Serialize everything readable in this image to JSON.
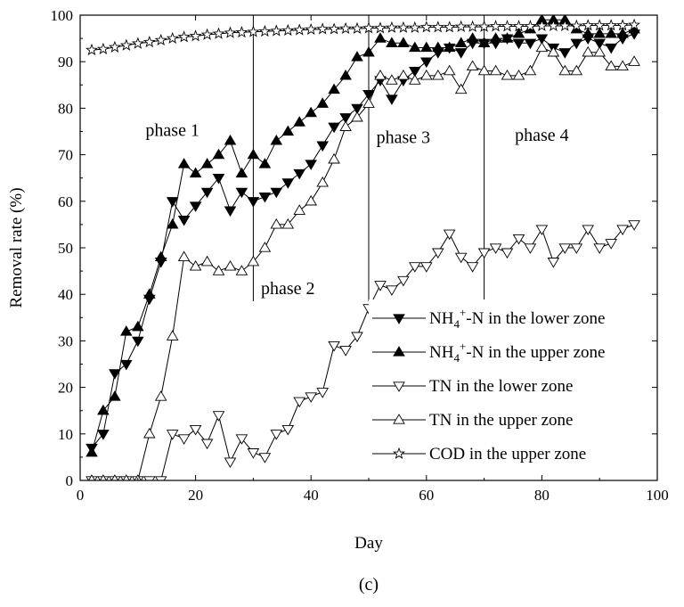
{
  "chart_data": {
    "type": "line",
    "caption": "(c)",
    "xlabel": "Day",
    "ylabel": "Removal rate (%)",
    "xlim": [
      0,
      100
    ],
    "ylim": [
      0,
      100
    ],
    "xticks": [
      0,
      20,
      40,
      60,
      80,
      100
    ],
    "yticks": [
      0,
      10,
      20,
      30,
      40,
      50,
      60,
      70,
      80,
      90,
      100
    ],
    "grid": false,
    "legend_position": "bottom-right",
    "phase_dividers": [
      30,
      50,
      70
    ],
    "phase_labels": [
      {
        "text": "phase 1",
        "x": 16,
        "y": 74
      },
      {
        "text": "phase 2",
        "x": 36,
        "y": 40
      },
      {
        "text": "phase 3",
        "x": 56,
        "y": 72.5
      },
      {
        "text": "phase 4",
        "x": 80,
        "y": 73
      }
    ],
    "series": [
      {
        "name": "NH4+-N in the lower zone",
        "legend_main": "NH",
        "legend_sub": "4",
        "legend_sup": "+",
        "legend_rest": "-N in the lower zone",
        "marker": "triangle-down-filled",
        "x": [
          2,
          4,
          6,
          8,
          10,
          12,
          14,
          16,
          18,
          20,
          22,
          24,
          26,
          28,
          30,
          32,
          34,
          36,
          38,
          40,
          42,
          44,
          46,
          48,
          50,
          52,
          54,
          56,
          58,
          60,
          62,
          64,
          66,
          68,
          70,
          72,
          74,
          76,
          78,
          80,
          82,
          84,
          86,
          88,
          90,
          92,
          94,
          96
        ],
        "y": [
          7,
          10,
          23,
          25,
          30,
          39,
          47,
          60,
          56,
          59,
          62,
          65,
          58,
          62,
          60,
          61,
          62,
          64,
          66,
          68,
          72,
          76,
          78,
          80,
          83,
          86,
          82,
          86,
          88,
          90,
          92,
          93,
          92,
          94,
          94,
          94,
          95,
          94,
          94,
          95,
          93,
          92,
          94,
          95,
          94,
          93,
          95,
          96
        ]
      },
      {
        "name": "NH4+-N in the upper zone",
        "legend_main": "NH",
        "legend_sub": "4",
        "legend_sup": "+",
        "legend_rest": "-N in the upper zone",
        "marker": "triangle-up-filled",
        "x": [
          2,
          4,
          6,
          8,
          10,
          12,
          14,
          16,
          18,
          20,
          22,
          24,
          26,
          28,
          30,
          32,
          34,
          36,
          38,
          40,
          42,
          44,
          46,
          48,
          50,
          52,
          54,
          56,
          58,
          60,
          62,
          64,
          66,
          68,
          70,
          72,
          74,
          76,
          78,
          80,
          82,
          84,
          86,
          88,
          90,
          92,
          94,
          96
        ],
        "y": [
          6,
          15,
          18,
          32,
          33,
          40,
          48,
          55,
          68,
          66,
          68,
          70,
          73,
          66,
          70,
          68,
          73,
          75,
          77,
          79,
          81,
          84,
          87,
          91,
          92,
          95,
          94,
          94,
          93,
          93,
          93,
          93,
          94,
          95,
          94,
          95,
          95,
          96,
          97,
          99,
          99,
          99,
          97,
          96,
          96,
          96,
          96,
          97
        ]
      },
      {
        "name": "TN in the lower zone",
        "legend_main": "TN in the lower zone",
        "marker": "triangle-down-open",
        "x": [
          2,
          4,
          6,
          8,
          10,
          12,
          14,
          16,
          18,
          20,
          22,
          24,
          26,
          28,
          30,
          32,
          34,
          36,
          38,
          40,
          42,
          44,
          46,
          48,
          50,
          52,
          54,
          56,
          58,
          60,
          62,
          64,
          66,
          68,
          70,
          72,
          74,
          76,
          78,
          80,
          82,
          84,
          86,
          88,
          90,
          92,
          94,
          96
        ],
        "y": [
          0,
          0,
          0,
          0,
          0,
          0,
          0,
          10,
          9,
          11,
          8,
          14,
          4,
          9,
          6,
          5,
          10,
          11,
          17,
          18,
          19,
          29,
          28,
          31,
          37,
          42,
          41,
          43,
          46,
          46,
          49,
          53,
          48,
          46,
          49,
          50,
          49,
          52,
          50,
          54,
          47,
          50,
          50,
          54,
          50,
          51,
          54,
          55
        ]
      },
      {
        "name": "TN in the upper zone",
        "legend_main": "TN in the upper zone",
        "marker": "triangle-up-open",
        "x": [
          2,
          4,
          6,
          8,
          10,
          12,
          14,
          16,
          18,
          20,
          22,
          24,
          26,
          28,
          30,
          32,
          34,
          36,
          38,
          40,
          42,
          44,
          46,
          48,
          50,
          52,
          54,
          56,
          58,
          60,
          62,
          64,
          66,
          68,
          70,
          72,
          74,
          76,
          78,
          80,
          82,
          84,
          86,
          88,
          90,
          92,
          94,
          96
        ],
        "y": [
          0,
          0,
          0,
          0,
          0,
          10,
          18,
          31,
          48,
          46,
          47,
          45,
          46,
          45,
          47,
          50,
          55,
          55,
          58,
          60,
          64,
          69,
          76,
          78,
          81,
          87,
          86,
          87,
          86,
          87,
          87,
          88,
          84,
          89,
          88,
          88,
          87,
          87,
          88,
          93,
          92,
          88,
          88,
          92,
          92,
          89,
          89,
          90
        ]
      },
      {
        "name": "COD in the upper zone",
        "legend_main": "COD in the upper zone",
        "marker": "star-open",
        "x": [
          2,
          4,
          6,
          8,
          10,
          12,
          14,
          16,
          18,
          20,
          22,
          24,
          26,
          28,
          30,
          32,
          34,
          36,
          38,
          40,
          42,
          44,
          46,
          48,
          50,
          52,
          54,
          56,
          58,
          60,
          62,
          64,
          66,
          68,
          70,
          72,
          74,
          76,
          78,
          80,
          82,
          84,
          86,
          88,
          90,
          92,
          94,
          96
        ],
        "y": [
          92.5,
          92.7,
          93.1,
          93.5,
          93.9,
          94.2,
          94.6,
          95.0,
          95.3,
          95.5,
          95.8,
          96.0,
          96.2,
          96.3,
          96.4,
          96.5,
          96.6,
          96.7,
          96.8,
          96.9,
          97.0,
          97.0,
          97.1,
          97.1,
          97.2,
          97.2,
          97.3,
          97.3,
          97.3,
          97.4,
          97.4,
          97.4,
          97.5,
          97.5,
          97.5,
          97.6,
          97.6,
          97.6,
          97.6,
          97.7,
          97.7,
          97.7,
          97.7,
          97.8,
          97.8,
          97.8,
          97.8,
          97.9
        ]
      }
    ]
  }
}
